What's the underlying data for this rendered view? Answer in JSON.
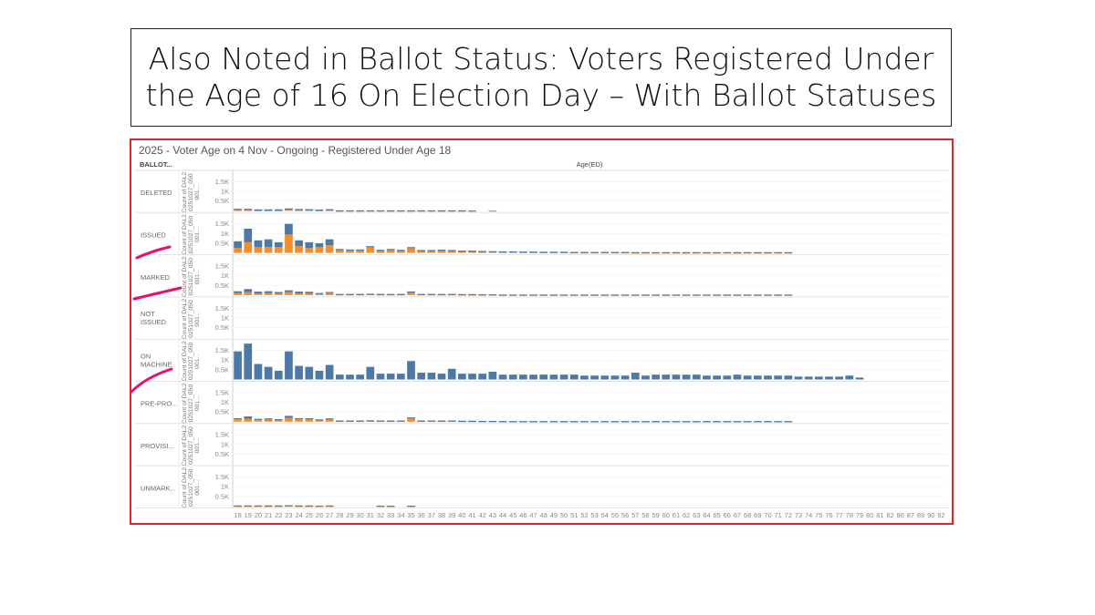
{
  "slide": {
    "title_line1": "Also Noted in Ballot Status: Voters Registered Under",
    "title_line2": "the Age of 16 On Election Day – With Ballot Statuses"
  },
  "chart_data": {
    "type": "bar",
    "title": "2025 - Voter Age on 4 Nov - Ongoing - Registered Under Age 18",
    "row_header": "BALLOT...",
    "column_header": "Age(ED)",
    "y_axis_label_lines": [
      "Count of DAL2",
      "0251027_050",
      "001..."
    ],
    "y_ticks": [
      "0.5K",
      "1K",
      "1.5K"
    ],
    "ylim": [
      0,
      1800
    ],
    "colors": {
      "blue": "#4e79a7",
      "orange": "#f28e2b",
      "annotation": "#e8106e",
      "frame": "#e0262b"
    },
    "categories": [
      "18",
      "19",
      "20",
      "21",
      "22",
      "23",
      "24",
      "25",
      "26",
      "27",
      "28",
      "29",
      "30",
      "31",
      "32",
      "33",
      "34",
      "35",
      "36",
      "37",
      "38",
      "39",
      "40",
      "41",
      "42",
      "43",
      "44",
      "45",
      "46",
      "47",
      "48",
      "49",
      "50",
      "51",
      "52",
      "53",
      "54",
      "55",
      "56",
      "57",
      "58",
      "59",
      "60",
      "61",
      "62",
      "63",
      "64",
      "65",
      "66",
      "67",
      "68",
      "69",
      "70",
      "71",
      "72",
      "73",
      "74",
      "75",
      "76",
      "77",
      "78",
      "79",
      "80",
      "81",
      "82",
      "86",
      "87",
      "89",
      "90",
      "92"
    ],
    "rows": [
      {
        "label": "DELETED",
        "blue": [
          60,
          60,
          40,
          40,
          40,
          70,
          50,
          40,
          30,
          40,
          10,
          10,
          10,
          10,
          10,
          10,
          10,
          10,
          10,
          10,
          10,
          10,
          10,
          10,
          0,
          0,
          0,
          0,
          0,
          0,
          0,
          0,
          0,
          0,
          0,
          0,
          0,
          0,
          0,
          0,
          0,
          0,
          0,
          0,
          0,
          0,
          0,
          0,
          0,
          0,
          0,
          0,
          0,
          0,
          0,
          0,
          0,
          0,
          0,
          0,
          0,
          0,
          0,
          0,
          0,
          0,
          0,
          0,
          0,
          0
        ],
        "orange": [
          40,
          40,
          30,
          30,
          30,
          50,
          40,
          40,
          30,
          40,
          10,
          10,
          10,
          10,
          10,
          10,
          10,
          10,
          10,
          10,
          10,
          10,
          10,
          0,
          0,
          10,
          0,
          0,
          0,
          0,
          0,
          0,
          0,
          0,
          0,
          0,
          0,
          0,
          0,
          0,
          0,
          0,
          0,
          0,
          0,
          0,
          0,
          0,
          0,
          0,
          0,
          0,
          0,
          0,
          0,
          0,
          0,
          0,
          0,
          0,
          0,
          0,
          0,
          0,
          0,
          0,
          0,
          0,
          0,
          0
        ]
      },
      {
        "label": "ISSUED",
        "blue": [
          350,
          700,
          350,
          400,
          250,
          550,
          300,
          300,
          200,
          300,
          50,
          50,
          50,
          50,
          30,
          30,
          30,
          50,
          20,
          20,
          20,
          20,
          20,
          20,
          20,
          20,
          20,
          20,
          20,
          20,
          20,
          20,
          20,
          20,
          20,
          20,
          20,
          20,
          20,
          20,
          20,
          20,
          20,
          20,
          20,
          20,
          20,
          20,
          20,
          20,
          20,
          20,
          20,
          20,
          20,
          0,
          0,
          0,
          0,
          0,
          0,
          0,
          0,
          0,
          0,
          0,
          0,
          0,
          0,
          0
        ],
        "orange": [
          250,
          550,
          300,
          300,
          300,
          950,
          350,
          250,
          300,
          400,
          150,
          130,
          130,
          300,
          130,
          170,
          130,
          250,
          130,
          130,
          150,
          130,
          100,
          100,
          80,
          70,
          60,
          60,
          50,
          50,
          40,
          40,
          40,
          30,
          30,
          30,
          30,
          30,
          30,
          20,
          20,
          20,
          20,
          20,
          20,
          20,
          20,
          20,
          20,
          20,
          20,
          20,
          20,
          20,
          20,
          0,
          0,
          0,
          0,
          0,
          0,
          0,
          0,
          0,
          0,
          0,
          0,
          0,
          0,
          0
        ]
      },
      {
        "label": "MARKED",
        "blue": [
          100,
          160,
          100,
          100,
          80,
          100,
          90,
          80,
          50,
          60,
          20,
          20,
          20,
          20,
          20,
          20,
          20,
          40,
          20,
          20,
          20,
          20,
          20,
          20,
          10,
          10,
          10,
          10,
          10,
          10,
          10,
          10,
          10,
          10,
          10,
          10,
          10,
          10,
          10,
          10,
          10,
          10,
          10,
          10,
          10,
          10,
          10,
          10,
          10,
          10,
          10,
          10,
          10,
          10,
          10,
          0,
          0,
          0,
          0,
          0,
          0,
          0,
          0,
          0,
          0,
          0,
          0,
          0,
          0,
          0
        ],
        "orange": [
          100,
          150,
          80,
          100,
          80,
          150,
          90,
          90,
          60,
          100,
          40,
          40,
          40,
          50,
          40,
          40,
          40,
          150,
          40,
          40,
          40,
          40,
          30,
          30,
          30,
          30,
          20,
          20,
          20,
          20,
          20,
          20,
          20,
          20,
          20,
          20,
          20,
          20,
          20,
          20,
          20,
          20,
          20,
          20,
          20,
          20,
          20,
          20,
          20,
          20,
          20,
          20,
          20,
          20,
          20,
          0,
          0,
          0,
          0,
          0,
          0,
          0,
          0,
          0,
          0,
          0,
          0,
          0,
          0,
          0
        ]
      },
      {
        "label": "NOT ISSUED",
        "blue": [
          0,
          0,
          0,
          0,
          0,
          0,
          0,
          0,
          0,
          0,
          0,
          0,
          0,
          0,
          0,
          0,
          0,
          0,
          0,
          0,
          0,
          0,
          0,
          0,
          0,
          0,
          0,
          0,
          0,
          0,
          0,
          0,
          0,
          0,
          0,
          0,
          0,
          0,
          0,
          0,
          0,
          0,
          0,
          0,
          0,
          0,
          0,
          0,
          0,
          0,
          0,
          0,
          0,
          0,
          0,
          0,
          0,
          0,
          0,
          0,
          0,
          0,
          0,
          0,
          0,
          0,
          0,
          0,
          0,
          0
        ],
        "orange": [
          0,
          0,
          0,
          0,
          0,
          0,
          0,
          0,
          0,
          0,
          0,
          0,
          0,
          0,
          0,
          0,
          0,
          0,
          0,
          0,
          0,
          0,
          0,
          0,
          0,
          0,
          0,
          0,
          0,
          0,
          0,
          0,
          0,
          0,
          0,
          0,
          0,
          0,
          0,
          0,
          0,
          0,
          0,
          0,
          0,
          0,
          0,
          0,
          0,
          0,
          0,
          0,
          0,
          0,
          0,
          0,
          0,
          0,
          0,
          0,
          0,
          0,
          0,
          0,
          0,
          0,
          0,
          0,
          0,
          0
        ]
      },
      {
        "label": "ON MACHINE",
        "blue": [
          1450,
          1850,
          800,
          650,
          450,
          1450,
          700,
          650,
          450,
          750,
          250,
          250,
          250,
          650,
          300,
          300,
          300,
          950,
          350,
          350,
          300,
          550,
          300,
          300,
          300,
          400,
          250,
          250,
          250,
          250,
          250,
          250,
          250,
          250,
          200,
          200,
          200,
          200,
          200,
          350,
          200,
          250,
          250,
          250,
          250,
          250,
          200,
          200,
          200,
          250,
          200,
          200,
          200,
          200,
          200,
          150,
          150,
          150,
          150,
          150,
          200,
          100,
          0,
          0,
          0,
          0,
          0,
          0,
          0,
          0
        ],
        "orange": [
          0,
          0,
          0,
          0,
          0,
          0,
          0,
          0,
          0,
          0,
          0,
          0,
          0,
          0,
          0,
          0,
          0,
          0,
          0,
          0,
          0,
          0,
          0,
          0,
          0,
          0,
          0,
          0,
          0,
          0,
          0,
          0,
          0,
          0,
          0,
          0,
          0,
          0,
          0,
          0,
          0,
          0,
          0,
          0,
          0,
          0,
          0,
          0,
          0,
          0,
          0,
          0,
          0,
          0,
          0,
          0,
          0,
          0,
          0,
          0,
          0,
          0,
          0,
          0,
          0,
          0,
          0,
          0,
          0,
          0
        ]
      },
      {
        "label": "PRE-PRO...",
        "blue": [
          60,
          120,
          60,
          60,
          50,
          100,
          60,
          60,
          40,
          50,
          20,
          20,
          20,
          20,
          20,
          20,
          20,
          40,
          20,
          20,
          20,
          20,
          20,
          20,
          10,
          10,
          10,
          10,
          10,
          10,
          10,
          10,
          10,
          10,
          10,
          10,
          10,
          10,
          10,
          10,
          10,
          10,
          10,
          10,
          10,
          10,
          10,
          10,
          10,
          10,
          10,
          10,
          10,
          10,
          10,
          0,
          0,
          0,
          0,
          0,
          0,
          0,
          0,
          0,
          0,
          0,
          0,
          0,
          0,
          0
        ],
        "orange": [
          120,
          150,
          90,
          110,
          80,
          200,
          120,
          120,
          80,
          120,
          40,
          40,
          40,
          50,
          40,
          40,
          40,
          180,
          40,
          40,
          40,
          40,
          30,
          30,
          30,
          30,
          20,
          20,
          20,
          20,
          20,
          20,
          20,
          20,
          20,
          20,
          20,
          20,
          20,
          20,
          20,
          20,
          20,
          20,
          20,
          20,
          20,
          20,
          20,
          20,
          20,
          20,
          20,
          20,
          20,
          0,
          0,
          0,
          0,
          0,
          0,
          0,
          0,
          0,
          0,
          0,
          0,
          0,
          0,
          0
        ]
      },
      {
        "label": "PROVISI...",
        "blue": [
          0,
          0,
          0,
          0,
          0,
          0,
          0,
          0,
          0,
          0,
          0,
          0,
          0,
          0,
          0,
          0,
          0,
          0,
          0,
          0,
          0,
          0,
          0,
          0,
          0,
          0,
          0,
          0,
          0,
          0,
          0,
          0,
          0,
          0,
          0,
          0,
          0,
          0,
          0,
          0,
          0,
          0,
          0,
          0,
          0,
          0,
          0,
          0,
          0,
          0,
          0,
          0,
          0,
          0,
          0,
          0,
          0,
          0,
          0,
          0,
          0,
          0,
          0,
          0,
          0,
          0,
          0,
          0,
          0,
          0
        ],
        "orange": [
          0,
          0,
          0,
          0,
          0,
          0,
          0,
          0,
          0,
          0,
          0,
          0,
          0,
          0,
          0,
          0,
          0,
          0,
          0,
          0,
          0,
          0,
          0,
          0,
          0,
          0,
          0,
          0,
          0,
          0,
          0,
          0,
          0,
          0,
          0,
          0,
          0,
          0,
          0,
          0,
          0,
          0,
          0,
          0,
          0,
          0,
          0,
          0,
          0,
          0,
          0,
          0,
          0,
          0,
          0,
          0,
          0,
          0,
          0,
          0,
          0,
          0,
          0,
          0,
          0,
          0,
          0,
          0,
          0,
          0
        ]
      },
      {
        "label": "UNMARK...",
        "blue": [
          20,
          20,
          20,
          20,
          20,
          20,
          20,
          20,
          10,
          20,
          0,
          0,
          0,
          0,
          10,
          10,
          0,
          10,
          0,
          0,
          0,
          0,
          0,
          0,
          0,
          0,
          0,
          0,
          0,
          0,
          0,
          0,
          0,
          0,
          0,
          0,
          0,
          0,
          0,
          0,
          0,
          0,
          0,
          0,
          0,
          0,
          0,
          0,
          0,
          0,
          0,
          0,
          0,
          0,
          0,
          0,
          0,
          0,
          0,
          0,
          0,
          0,
          0,
          0,
          0,
          0,
          0,
          0,
          0,
          0
        ],
        "orange": [
          10,
          10,
          10,
          10,
          10,
          20,
          10,
          10,
          10,
          10,
          0,
          0,
          0,
          0,
          10,
          10,
          0,
          10,
          0,
          0,
          0,
          0,
          0,
          0,
          0,
          0,
          0,
          0,
          0,
          0,
          0,
          0,
          0,
          0,
          0,
          0,
          0,
          0,
          0,
          0,
          0,
          0,
          0,
          0,
          0,
          0,
          0,
          0,
          0,
          0,
          0,
          0,
          0,
          0,
          0,
          0,
          0,
          0,
          0,
          0,
          0,
          0,
          0,
          0,
          0,
          0,
          0,
          0,
          0,
          0
        ]
      }
    ]
  }
}
